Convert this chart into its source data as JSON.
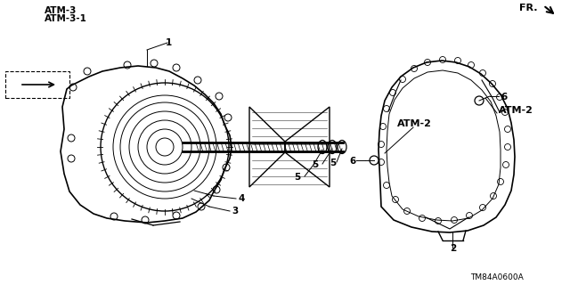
{
  "bg_color": "#ffffff",
  "labels": {
    "ATM3": "ATM-3",
    "ATM31": "ATM-3-1",
    "ATM2_left": "ATM-2",
    "ATM2_right": "ATM-2",
    "FR": "FR.",
    "part1": "1",
    "part2": "2",
    "part3": "3",
    "part4": "4",
    "part5a": "5",
    "part5b": "5",
    "part5c": "5",
    "part6a": "6",
    "part6b": "6"
  },
  "footnote": "TM84A0600A",
  "line_color": "#000000",
  "text_color": "#000000"
}
